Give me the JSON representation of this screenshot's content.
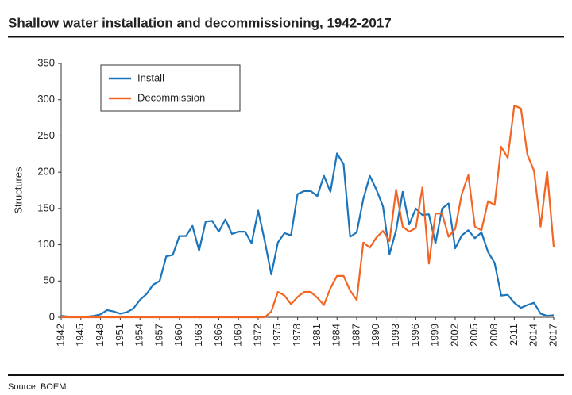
{
  "chart_data": {
    "type": "line",
    "title": "Shallow water installation and decommissioning, 1942-2017",
    "y_label": "Structures",
    "source": "Source: BOEM",
    "x": [
      1942,
      1943,
      1944,
      1945,
      1946,
      1947,
      1948,
      1949,
      1950,
      1951,
      1952,
      1953,
      1954,
      1955,
      1956,
      1957,
      1958,
      1959,
      1960,
      1961,
      1962,
      1963,
      1964,
      1965,
      1966,
      1967,
      1968,
      1969,
      1970,
      1971,
      1972,
      1973,
      1974,
      1975,
      1976,
      1977,
      1978,
      1979,
      1980,
      1981,
      1982,
      1983,
      1984,
      1985,
      1986,
      1987,
      1988,
      1989,
      1990,
      1991,
      1992,
      1993,
      1994,
      1995,
      1996,
      1997,
      1998,
      1999,
      2000,
      2001,
      2002,
      2003,
      2004,
      2005,
      2006,
      2007,
      2008,
      2009,
      2010,
      2011,
      2012,
      2013,
      2014,
      2015,
      2016,
      2017
    ],
    "series": [
      {
        "name": "Install",
        "color": "#1b75bc",
        "values": [
          2,
          1,
          1,
          1,
          1,
          2,
          4,
          10,
          8,
          5,
          7,
          12,
          24,
          32,
          45,
          50,
          84,
          86,
          112,
          112,
          126,
          92,
          132,
          133,
          118,
          135,
          115,
          118,
          118,
          102,
          147,
          105,
          59,
          103,
          116,
          113,
          170,
          174,
          174,
          167,
          195,
          173,
          226,
          211,
          111,
          117,
          163,
          195,
          176,
          153,
          87,
          120,
          173,
          128,
          150,
          141,
          142,
          102,
          150,
          157,
          95,
          113,
          120,
          109,
          117,
          90,
          75,
          30,
          31,
          20,
          13,
          17,
          20,
          5,
          2,
          3
        ]
      },
      {
        "name": "Decommission",
        "color": "#f26522",
        "values": [
          0,
          0,
          0,
          0,
          0,
          0,
          0,
          0,
          0,
          0,
          0,
          0,
          0,
          0,
          0,
          0,
          0,
          0,
          0,
          0,
          0,
          0,
          0,
          0,
          0,
          0,
          0,
          0,
          0,
          0,
          0,
          0,
          8,
          35,
          30,
          18,
          28,
          35,
          35,
          27,
          17,
          40,
          57,
          57,
          37,
          24,
          103,
          96,
          110,
          119,
          105,
          176,
          125,
          118,
          123,
          179,
          74,
          143,
          143,
          111,
          122,
          170,
          196,
          125,
          120,
          160,
          155,
          235,
          220,
          292,
          288,
          224,
          202,
          125,
          201,
          97
        ]
      }
    ],
    "xlim": [
      1942,
      2017
    ],
    "xticks": [
      1942,
      1945,
      1948,
      1951,
      1954,
      1957,
      1960,
      1963,
      1966,
      1969,
      1972,
      1975,
      1978,
      1981,
      1984,
      1987,
      1990,
      1993,
      1996,
      1999,
      2002,
      2005,
      2008,
      2011,
      2014,
      2017
    ],
    "ylim": [
      0,
      350
    ],
    "yticks": [
      0,
      50,
      100,
      150,
      200,
      250,
      300,
      350
    ],
    "legend": "upper-left"
  }
}
